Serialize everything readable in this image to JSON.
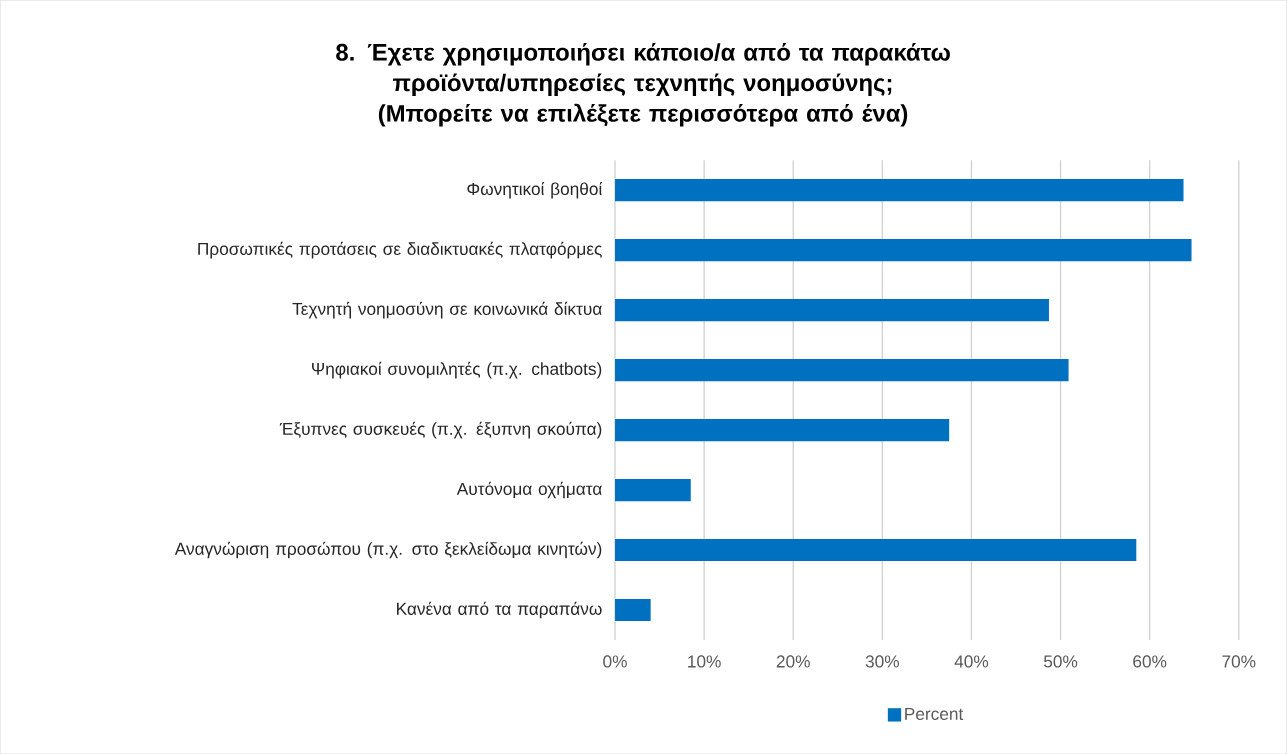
{
  "chart_data": {
    "type": "bar",
    "orientation": "horizontal",
    "title": "8. Έχετε χρησιμοποιήσει κάποιο/α από τα παρακάτω προϊόντα/υπηρεσίες τεχνητής νοημοσύνης; (Μπορείτε να επιλέξετε περισσότερα από ένα)",
    "categories": [
      "Φωνητικοί βοηθοί",
      "Προσωπικές προτάσεις σε διαδικτυακές πλατφόρμες",
      "Τεχνητή νοημοσύνη σε κοινωνικά δίκτυα",
      "Ψηφιακοί συνομιλητές (π.χ. chatbots)",
      "Έξυπνες συσκευές (π.χ. έξυπνη σκούπα)",
      "Αυτόνομα οχήματα",
      "Αναγνώριση προσώπου (π.χ. στο ξεκλείδωμα κινητών)",
      "Κανένα από τα παραπάνω"
    ],
    "series": [
      {
        "name": "Percent",
        "color": "#0070c0",
        "values": [
          63.8,
          64.7,
          48.7,
          50.9,
          37.5,
          8.5,
          58.5,
          4.0
        ]
      }
    ],
    "xlim": [
      0,
      70
    ],
    "xticks": [
      {
        "value": 0,
        "label": "0%"
      },
      {
        "value": 10,
        "label": "10%"
      },
      {
        "value": 20,
        "label": "20%"
      },
      {
        "value": 30,
        "label": "30%"
      },
      {
        "value": 40,
        "label": "40%"
      },
      {
        "value": 50,
        "label": "50%"
      },
      {
        "value": 60,
        "label": "60%"
      },
      {
        "value": 70,
        "label": "70%"
      }
    ],
    "grid": "x",
    "legend": "bottom"
  }
}
